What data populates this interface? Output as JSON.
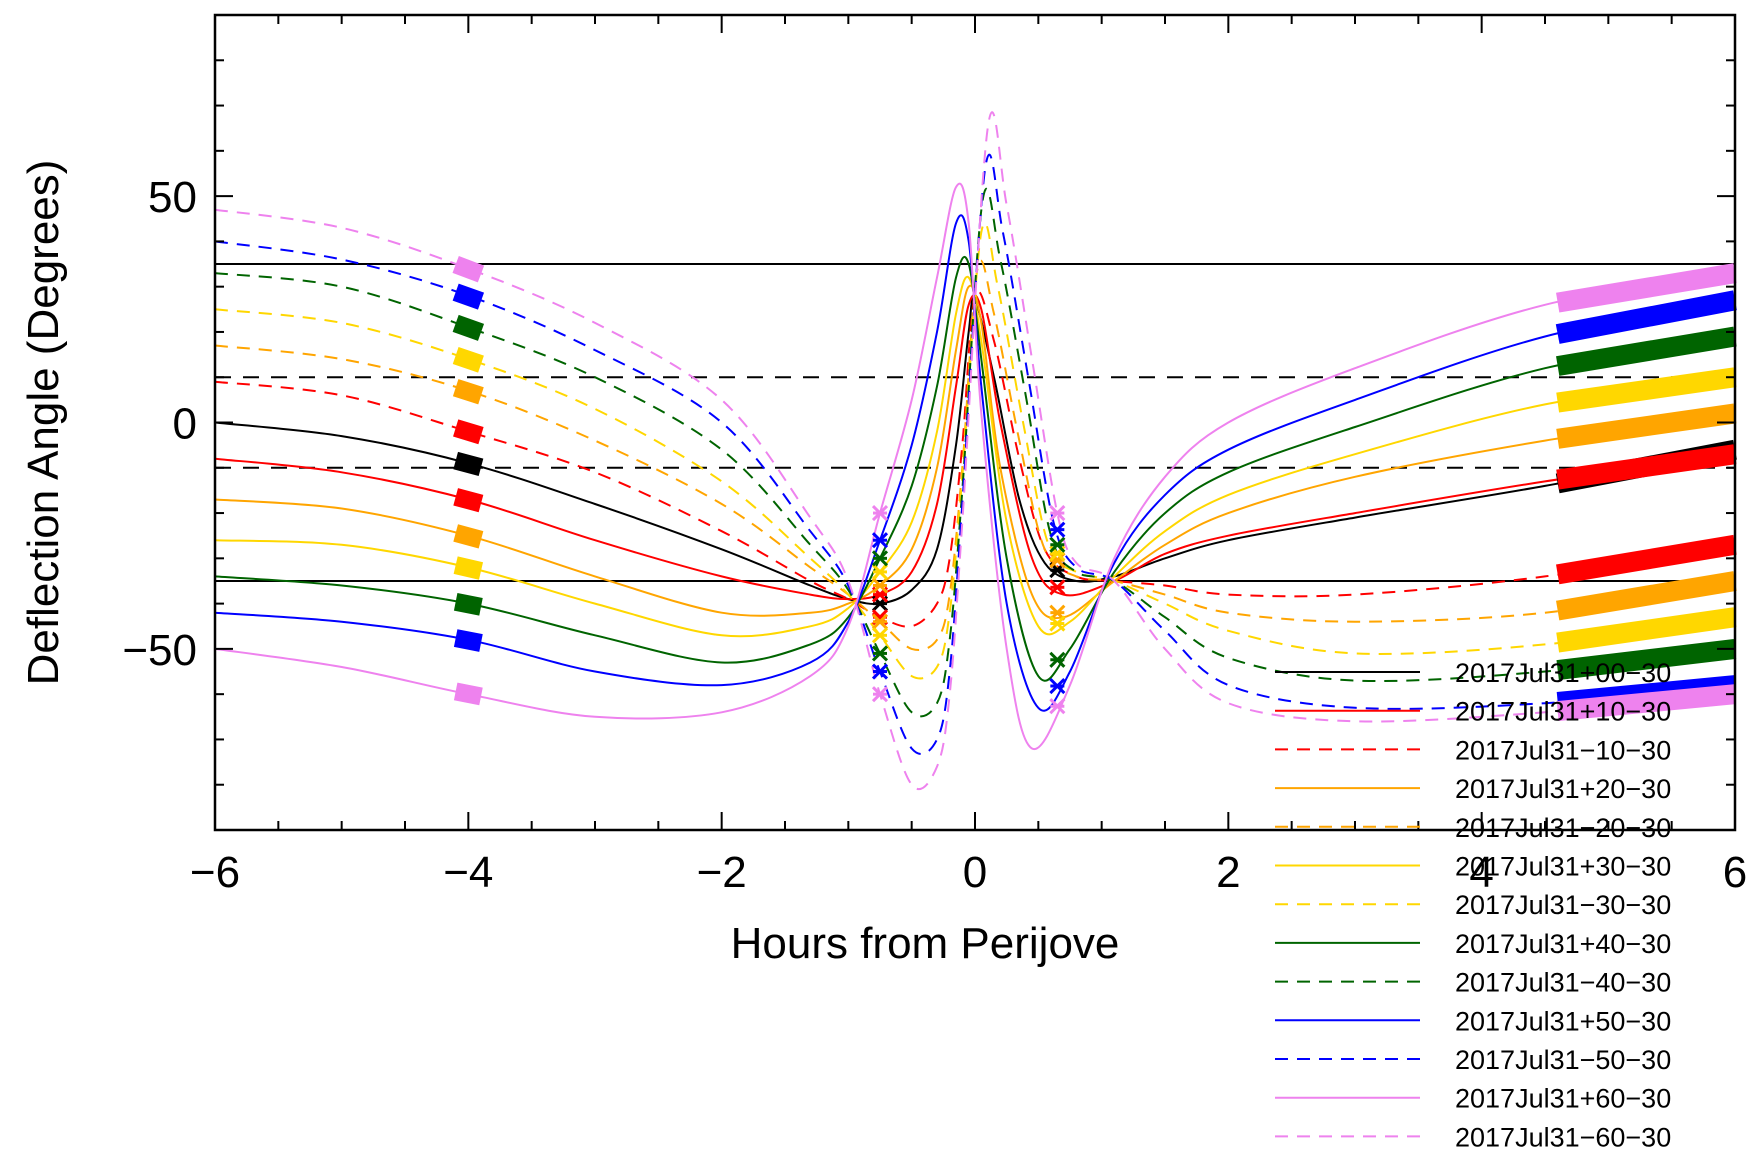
{
  "chart_data": {
    "type": "line",
    "title": "",
    "xlabel": "Hours from Perijove",
    "ylabel": "Deflection Angle (Degrees)",
    "xlim": [
      -6,
      6
    ],
    "ylim": [
      -90,
      90
    ],
    "x_ticks": [
      -6,
      -4,
      -2,
      0,
      2,
      4,
      6
    ],
    "x_tick_labels": [
      "−6",
      "−4",
      "−2",
      "0",
      "2",
      "4",
      "6"
    ],
    "y_ticks": [
      -50,
      0,
      50
    ],
    "y_tick_labels": [
      "−50",
      "0",
      "50"
    ],
    "grid": false,
    "legend_position": "bottom-right",
    "reference_lines": [
      {
        "y": 35,
        "style": "solid",
        "color": "#000000"
      },
      {
        "y": -35,
        "style": "solid",
        "color": "#000000"
      },
      {
        "y": 10,
        "style": "dashed",
        "color": "#000000"
      },
      {
        "y": -10,
        "style": "dashed",
        "color": "#000000"
      }
    ],
    "series": [
      {
        "name": "2017Jul31+00−30",
        "color": "#000000",
        "dash": false,
        "x": [
          -6,
          -5,
          -4,
          -3,
          -2,
          -1.3,
          -1,
          -0.75,
          -0.5,
          -0.3,
          -0.15,
          -0.05,
          0.0,
          0.15,
          0.35,
          0.55,
          0.8,
          1.1,
          1.5,
          2,
          3,
          4.5,
          6
        ],
        "y": [
          0,
          -3,
          -9,
          -18,
          -28,
          -36,
          -39,
          -40,
          -37,
          -28,
          -5,
          20,
          27,
          10,
          -17,
          -31,
          -35,
          -34,
          -30,
          -26,
          -21,
          -14,
          -6
        ]
      },
      {
        "name": "2017Jul31+10−30",
        "color": "#ff0000",
        "dash": false,
        "x": [
          -6,
          -5,
          -4,
          -3,
          -2,
          -1.3,
          -1,
          -0.75,
          -0.5,
          -0.3,
          -0.15,
          -0.05,
          0.05,
          0.2,
          0.45,
          0.7,
          1.1,
          1.5,
          2,
          3,
          4.5,
          6
        ],
        "y": [
          -8,
          -11,
          -17,
          -26,
          -34,
          -38,
          -39,
          -38,
          -33,
          -18,
          8,
          26,
          25,
          0,
          -30,
          -38,
          -35,
          -29,
          -25,
          -20,
          -13,
          -7
        ]
      },
      {
        "name": "2017Jul31−10−30",
        "color": "#ff0000",
        "dash": true,
        "x": [
          -6,
          -5,
          -4,
          -3,
          -2,
          -1.3,
          -1,
          -0.75,
          -0.5,
          -0.3,
          -0.2,
          -0.1,
          0.0,
          0.15,
          0.35,
          0.55,
          0.8,
          1.1,
          1.5,
          2,
          3,
          4.5,
          6
        ],
        "y": [
          9,
          6,
          -2,
          -11,
          -24,
          -35,
          -39,
          -43,
          -45,
          -40,
          -30,
          -5,
          28,
          18,
          -8,
          -28,
          -34,
          -35,
          -36,
          -38,
          -38,
          -34,
          -27
        ]
      },
      {
        "name": "2017Jul31+20−30",
        "color": "#ffa500",
        "dash": false,
        "x": [
          -6,
          -5,
          -4,
          -3,
          -2,
          -1.3,
          -1,
          -0.75,
          -0.5,
          -0.3,
          -0.15,
          -0.05,
          0.05,
          0.2,
          0.45,
          0.7,
          1.1,
          1.5,
          2,
          3,
          4.5,
          6
        ],
        "y": [
          -17,
          -19,
          -25,
          -34,
          -42,
          -42,
          -40,
          -36,
          -28,
          -10,
          16,
          30,
          22,
          -10,
          -38,
          -43,
          -35,
          -27,
          -20,
          -12,
          -4,
          2
        ]
      },
      {
        "name": "2017Jul31−20−30",
        "color": "#ffa500",
        "dash": true,
        "x": [
          -6,
          -5,
          -4,
          -3,
          -2,
          -1.3,
          -1,
          -0.75,
          -0.5,
          -0.3,
          -0.2,
          -0.1,
          0.02,
          0.15,
          0.35,
          0.55,
          0.8,
          1.1,
          1.5,
          2,
          3,
          4.5,
          6
        ],
        "y": [
          17,
          14,
          7,
          -4,
          -18,
          -32,
          -38,
          -44,
          -50,
          -48,
          -38,
          -10,
          34,
          24,
          -4,
          -28,
          -34,
          -35,
          -38,
          -42,
          -44,
          -42,
          -35
        ]
      },
      {
        "name": "2017Jul31+30−30",
        "color": "#ffd700",
        "dash": false,
        "x": [
          -6,
          -5,
          -4,
          -3,
          -2,
          -1.3,
          -1,
          -0.75,
          -0.5,
          -0.3,
          -0.15,
          -0.05,
          0.05,
          0.25,
          0.5,
          0.75,
          1.1,
          1.5,
          2,
          3,
          4.5,
          6
        ],
        "y": [
          -26,
          -27,
          -32,
          -40,
          -47,
          -45,
          -41,
          -33,
          -22,
          -2,
          24,
          32,
          18,
          -22,
          -45,
          -44,
          -34,
          -24,
          -16,
          -7,
          4,
          10
        ]
      },
      {
        "name": "2017Jul31−30−30",
        "color": "#ffd700",
        "dash": true,
        "x": [
          -6,
          -5,
          -4,
          -3,
          -2,
          -1.3,
          -1,
          -0.75,
          -0.5,
          -0.3,
          -0.2,
          -0.1,
          0.05,
          0.18,
          0.38,
          0.58,
          0.8,
          1.1,
          1.5,
          2,
          3,
          4.5,
          6
        ],
        "y": [
          25,
          22,
          14,
          3,
          -13,
          -30,
          -38,
          -47,
          -56,
          -54,
          -42,
          -12,
          42,
          30,
          0,
          -27,
          -33,
          -35,
          -40,
          -46,
          -51,
          -49,
          -43
        ]
      },
      {
        "name": "2017Jul31+40−30",
        "color": "#006400",
        "dash": false,
        "x": [
          -6,
          -5,
          -4,
          -3,
          -2,
          -1.3,
          -1,
          -0.75,
          -0.5,
          -0.3,
          -0.15,
          -0.05,
          0.05,
          0.25,
          0.5,
          0.75,
          1.1,
          1.5,
          2,
          3,
          4.5,
          6
        ],
        "y": [
          -34,
          -36,
          -40,
          -47,
          -53,
          -49,
          -43,
          -30,
          -14,
          8,
          32,
          35,
          14,
          -30,
          -56,
          -50,
          -33,
          -20,
          -11,
          -1,
          12,
          19
        ]
      },
      {
        "name": "2017Jul31−40−30",
        "color": "#006400",
        "dash": true,
        "x": [
          -6,
          -5,
          -4,
          -3,
          -2,
          -1.3,
          -1,
          -0.75,
          -0.5,
          -0.3,
          -0.2,
          -0.1,
          0.06,
          0.2,
          0.4,
          0.6,
          0.8,
          1.1,
          1.5,
          2,
          3,
          4.5,
          6
        ],
        "y": [
          33,
          30,
          21,
          10,
          -6,
          -27,
          -37,
          -51,
          -64,
          -62,
          -48,
          -15,
          49,
          36,
          6,
          -25,
          -33,
          -35,
          -43,
          -52,
          -57,
          -55,
          -50
        ]
      },
      {
        "name": "2017Jul31+50−30",
        "color": "#0000ff",
        "dash": false,
        "x": [
          -6,
          -5,
          -4,
          -3,
          -2,
          -1.3,
          -1,
          -0.75,
          -0.5,
          -0.3,
          -0.15,
          -0.05,
          0.05,
          0.25,
          0.5,
          0.75,
          1.1,
          1.5,
          2,
          3,
          4.5,
          6
        ],
        "y": [
          -42,
          -44,
          -48,
          -55,
          -58,
          -53,
          -44,
          -26,
          -5,
          20,
          44,
          40,
          8,
          -40,
          -63,
          -55,
          -31,
          -16,
          -6,
          5,
          19,
          27
        ]
      },
      {
        "name": "2017Jul31−50−30",
        "color": "#0000ff",
        "dash": true,
        "x": [
          -6,
          -5,
          -4,
          -3,
          -2,
          -1.3,
          -1,
          -0.75,
          -0.5,
          -0.3,
          -0.2,
          -0.1,
          0.08,
          0.22,
          0.42,
          0.62,
          0.8,
          1.1,
          1.5,
          2,
          3,
          4.5,
          6
        ],
        "y": [
          40,
          36,
          28,
          16,
          0,
          -24,
          -36,
          -55,
          -72,
          -70,
          -55,
          -18,
          56,
          42,
          10,
          -22,
          -32,
          -35,
          -46,
          -58,
          -63,
          -62,
          -58
        ]
      },
      {
        "name": "2017Jul31+60−30",
        "color": "#ee82ee",
        "dash": false,
        "x": [
          -6,
          -5,
          -4,
          -3,
          -2,
          -1.3,
          -1,
          -0.75,
          -0.5,
          -0.3,
          -0.15,
          -0.05,
          0.05,
          0.25,
          0.45,
          0.75,
          1.1,
          1.5,
          2,
          3,
          4.5,
          6
        ],
        "y": [
          -50,
          -54,
          -60,
          -65,
          -64,
          -56,
          -45,
          -20,
          5,
          32,
          52,
          44,
          2,
          -50,
          -72,
          -58,
          -30,
          -12,
          0,
          12,
          26,
          33
        ]
      },
      {
        "name": "2017Jul31−60−30",
        "color": "#ee82ee",
        "dash": true,
        "x": [
          -6,
          -5,
          -4,
          -3,
          -2,
          -1.3,
          -1,
          -0.75,
          -0.5,
          -0.3,
          -0.2,
          -0.1,
          0.1,
          0.25,
          0.45,
          0.65,
          0.8,
          1.1,
          1.5,
          2,
          3,
          4.5,
          6
        ],
        "y": [
          47,
          43,
          34,
          22,
          5,
          -21,
          -35,
          -60,
          -80,
          -76,
          -60,
          -22,
          65,
          48,
          14,
          -20,
          -31,
          -35,
          -50,
          -62,
          -66,
          -64,
          -60
        ]
      }
    ],
    "highlight_x": [
      -4,
      -0.75,
      0.65,
      5
    ]
  }
}
